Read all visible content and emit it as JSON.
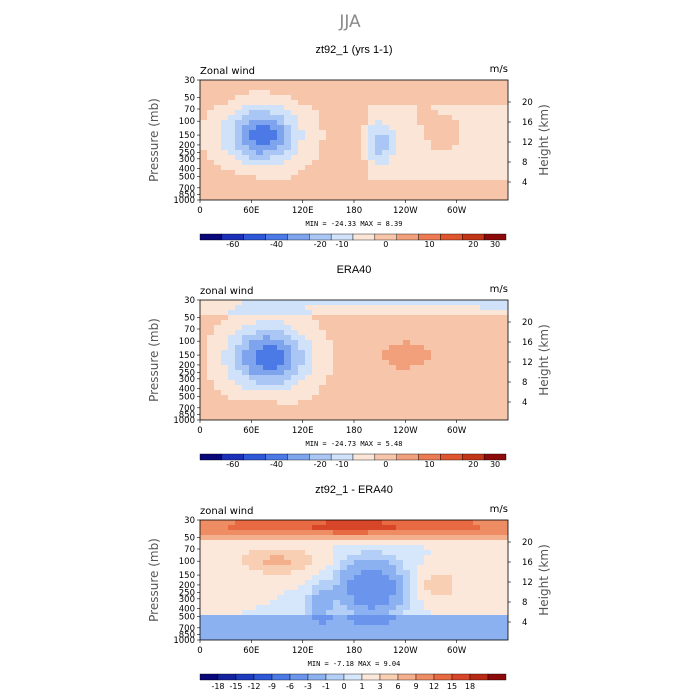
{
  "page_title": "JJA",
  "chart_data": [
    {
      "type": "heatmap",
      "title": "zt92_1 (yrs 1-1)",
      "corner_left": "Zonal wind",
      "corner_right": "m/s",
      "ylabel": "Pressure (mb)",
      "ylabel_right": "Height (km)",
      "x_ticks": [
        "0",
        "60E",
        "120E",
        "180",
        "120W",
        "60W"
      ],
      "y_ticks": [
        "30",
        "50",
        "70",
        "100",
        "150",
        "200",
        "250",
        "300",
        "400",
        "500",
        "700",
        "850",
        "1000"
      ],
      "y_ticks_right": [
        "20",
        "16",
        "12",
        "8",
        "4"
      ],
      "stats": "MIN = -24.33   MAX =   8.39",
      "colorbar_labels": [
        "-60",
        "-40",
        "-20",
        "-10",
        "0",
        "10",
        "20",
        "30"
      ],
      "colorbar_colors": [
        "#08087a",
        "#1c2fb8",
        "#2e58d8",
        "#4b7ae6",
        "#7ea4ee",
        "#a9c6f4",
        "#cfe2fa",
        "#fbe5d6",
        "#f7c6aa",
        "#f2a07c",
        "#ec7b53",
        "#df552e",
        "#c23516",
        "#8c0a0a"
      ],
      "features": [
        {
          "x": 72,
          "p": 150,
          "value": -24,
          "rx": 40,
          "ry": 2.3
        },
        {
          "x": 210,
          "p": 190,
          "value": -10,
          "rx": 15,
          "ry": 1.4
        },
        {
          "x": 285,
          "p": 140,
          "value": 8,
          "rx": 20,
          "ry": 1.5
        },
        {
          "x": 260,
          "p": 80,
          "value": 4,
          "rx": 15,
          "ry": 1.0
        },
        {
          "x": 50,
          "p": 650,
          "value": 3,
          "rx": 25,
          "ry": 1.2
        }
      ]
    },
    {
      "type": "heatmap",
      "title": "ERA40",
      "corner_left": "zonal wind",
      "corner_right": "m/s",
      "ylabel": "Pressure (mb)",
      "ylabel_right": "Height (km)",
      "x_ticks": [
        "0",
        "60E",
        "120E",
        "180",
        "120W",
        "60W"
      ],
      "y_ticks": [
        "30",
        "50",
        "70",
        "100",
        "150",
        "200",
        "250",
        "300",
        "400",
        "500",
        "700",
        "850",
        "1000"
      ],
      "y_ticks_right": [
        "20",
        "16",
        "12",
        "8",
        "4"
      ],
      "stats": "MIN = -24.73   MAX =   5.48",
      "colorbar_labels": [
        "-60",
        "-40",
        "-20",
        "-10",
        "0",
        "10",
        "20",
        "30"
      ],
      "colorbar_colors": [
        "#08087a",
        "#1c2fb8",
        "#2e58d8",
        "#4b7ae6",
        "#7ea4ee",
        "#a9c6f4",
        "#cfe2fa",
        "#fbe5d6",
        "#f7c6aa",
        "#f2a07c",
        "#ec7b53",
        "#df552e",
        "#c23516",
        "#8c0a0a"
      ],
      "features": [
        {
          "x": 80,
          "p": 160,
          "value": -25,
          "rx": 45,
          "ry": 2.6
        },
        {
          "x": 240,
          "p": 150,
          "value": 5,
          "rx": 45,
          "ry": 1.8
        },
        {
          "x": 350,
          "p": 30,
          "value": -3,
          "rx": 200,
          "ry": 0.6
        },
        {
          "x": 70,
          "p": 700,
          "value": 3,
          "rx": 25,
          "ry": 1.0
        }
      ]
    },
    {
      "type": "heatmap",
      "title": "zt92_1 - ERA40",
      "corner_left": "zonal wind",
      "corner_right": "m/s",
      "ylabel": "Pressure (mb)",
      "ylabel_right": "Height (km)",
      "x_ticks": [
        "0",
        "60E",
        "120E",
        "180",
        "120W",
        "60W"
      ],
      "y_ticks": [
        "30",
        "50",
        "70",
        "100",
        "150",
        "200",
        "250",
        "300",
        "400",
        "500",
        "700",
        "850",
        "1000"
      ],
      "y_ticks_right": [
        "20",
        "16",
        "12",
        "8",
        "4"
      ],
      "stats": "MIN = -7.18   MAX =  9.04",
      "colorbar_labels": [
        "-18",
        "-15",
        "-12",
        "-9",
        "-6",
        "-3",
        "-1",
        "0",
        "1",
        "3",
        "6",
        "9",
        "12",
        "15",
        "18"
      ],
      "colorbar_colors": [
        "#08087a",
        "#13229f",
        "#1c3bbf",
        "#2e58d8",
        "#4b7ae6",
        "#6b95ec",
        "#8cb1f1",
        "#b3cff7",
        "#d6e7fb",
        "#fbe8db",
        "#f8cfb3",
        "#f4b08c",
        "#ee8c64",
        "#e76a43",
        "#d8462a",
        "#b82a15",
        "#8c0a0a"
      ],
      "features": [
        {
          "x": 180,
          "p": 35,
          "value": 9,
          "rx": 200,
          "ry": 0.8
        },
        {
          "x": 90,
          "p": 100,
          "value": 6,
          "rx": 40,
          "ry": 1.0
        },
        {
          "x": 200,
          "p": 220,
          "value": -7,
          "rx": 35,
          "ry": 2.2
        },
        {
          "x": 280,
          "p": 200,
          "value": 4,
          "rx": 20,
          "ry": 1.2
        },
        {
          "x": 140,
          "p": 350,
          "value": -3,
          "rx": 15,
          "ry": 1.5
        }
      ]
    }
  ]
}
